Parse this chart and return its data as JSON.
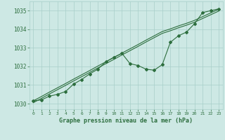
{
  "x": [
    0,
    1,
    2,
    3,
    4,
    5,
    6,
    7,
    8,
    9,
    10,
    11,
    12,
    13,
    14,
    15,
    16,
    17,
    18,
    19,
    20,
    21,
    22,
    23
  ],
  "y_main": [
    1030.15,
    1030.2,
    1030.4,
    1030.5,
    1030.65,
    1031.05,
    1031.3,
    1031.6,
    1031.85,
    1032.25,
    1032.5,
    1032.7,
    1032.15,
    1032.05,
    1031.85,
    1031.8,
    1032.1,
    1033.3,
    1033.65,
    1033.85,
    1034.3,
    1034.9,
    1035.0,
    1035.1
  ],
  "y_trend1": [
    1030.15,
    1030.38,
    1030.62,
    1030.85,
    1031.08,
    1031.32,
    1031.55,
    1031.78,
    1032.02,
    1032.25,
    1032.48,
    1032.72,
    1032.95,
    1033.18,
    1033.42,
    1033.65,
    1033.88,
    1034.02,
    1034.18,
    1034.32,
    1034.48,
    1034.68,
    1034.88,
    1035.08
  ],
  "y_trend2": [
    1030.05,
    1030.28,
    1030.52,
    1030.75,
    1030.98,
    1031.22,
    1031.45,
    1031.68,
    1031.92,
    1032.15,
    1032.38,
    1032.62,
    1032.85,
    1033.08,
    1033.32,
    1033.55,
    1033.78,
    1033.92,
    1034.08,
    1034.22,
    1034.38,
    1034.58,
    1034.78,
    1034.98
  ],
  "background_color": "#cde8e4",
  "grid_color": "#a8cfc9",
  "line_color": "#2d6e3e",
  "ylim": [
    1029.7,
    1035.5
  ],
  "yticks": [
    1030,
    1031,
    1032,
    1033,
    1034,
    1035
  ],
  "xticks": [
    0,
    1,
    2,
    3,
    4,
    5,
    6,
    7,
    8,
    9,
    10,
    11,
    12,
    13,
    14,
    15,
    16,
    17,
    18,
    19,
    20,
    21,
    22,
    23
  ],
  "xlabel": "Graphe pression niveau de la mer (hPa)"
}
